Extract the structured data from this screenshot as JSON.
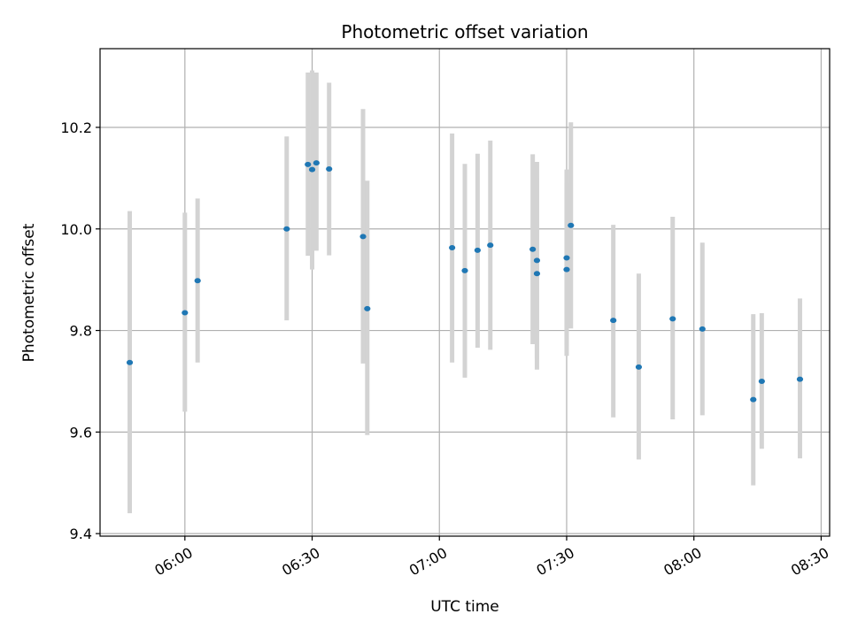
{
  "chart_data": {
    "type": "scatter",
    "title": "Photometric offset variation",
    "xlabel": "UTC time",
    "ylabel": "Photometric offset",
    "x_tick_labels": [
      "06:00",
      "06:30",
      "07:00",
      "07:30",
      "08:00",
      "08:30"
    ],
    "x_tick_values": [
      "06:00",
      "06:30",
      "07:00",
      "07:30",
      "08:00",
      "08:30"
    ],
    "y_ticks": [
      9.4,
      9.6,
      9.8,
      10.0,
      10.2
    ],
    "y_tick_labels": [
      "9.4",
      "9.6",
      "9.8",
      "10.0",
      "10.2"
    ],
    "xlim": [
      "05:40",
      "08:32"
    ],
    "ylim": [
      9.395,
      10.355
    ],
    "grid": true,
    "colors": {
      "point": "#1f77b4",
      "errorbar": "#d3d3d3",
      "grid": "#b0b0b0"
    },
    "points": [
      {
        "time": "05:47",
        "y": 9.737,
        "ylo": 9.44,
        "yhi": 10.035
      },
      {
        "time": "06:00",
        "y": 9.835,
        "ylo": 9.64,
        "yhi": 10.032
      },
      {
        "time": "06:03",
        "y": 9.898,
        "ylo": 9.737,
        "yhi": 10.06
      },
      {
        "time": "06:24",
        "y": 10.0,
        "ylo": 9.82,
        "yhi": 10.182
      },
      {
        "time": "06:29",
        "y": 10.127,
        "ylo": 9.947,
        "yhi": 10.308
      },
      {
        "time": "06:30",
        "y": 10.117,
        "ylo": 9.92,
        "yhi": 10.312
      },
      {
        "time": "06:31",
        "y": 10.13,
        "ylo": 9.957,
        "yhi": 10.308
      },
      {
        "time": "06:34",
        "y": 10.118,
        "ylo": 9.948,
        "yhi": 10.288
      },
      {
        "time": "06:42",
        "y": 9.985,
        "ylo": 9.735,
        "yhi": 10.236
      },
      {
        "time": "06:43",
        "y": 9.843,
        "ylo": 9.594,
        "yhi": 10.095
      },
      {
        "time": "07:03",
        "y": 9.963,
        "ylo": 9.737,
        "yhi": 10.188
      },
      {
        "time": "07:06",
        "y": 9.918,
        "ylo": 9.707,
        "yhi": 10.128
      },
      {
        "time": "07:09",
        "y": 9.958,
        "ylo": 9.766,
        "yhi": 10.148
      },
      {
        "time": "07:12",
        "y": 9.968,
        "ylo": 9.762,
        "yhi": 10.174
      },
      {
        "time": "07:22",
        "y": 9.96,
        "ylo": 9.773,
        "yhi": 10.147
      },
      {
        "time": "07:23",
        "y": 9.938,
        "ylo": 9.745,
        "yhi": 10.132
      },
      {
        "time": "07:23",
        "y": 9.912,
        "ylo": 9.723,
        "yhi": 10.1
      },
      {
        "time": "07:30",
        "y": 9.943,
        "ylo": 9.77,
        "yhi": 10.117
      },
      {
        "time": "07:30",
        "y": 9.92,
        "ylo": 9.75,
        "yhi": 10.09
      },
      {
        "time": "07:31",
        "y": 10.007,
        "ylo": 9.804,
        "yhi": 10.21
      },
      {
        "time": "07:41",
        "y": 9.82,
        "ylo": 9.629,
        "yhi": 10.008
      },
      {
        "time": "07:47",
        "y": 9.728,
        "ylo": 9.546,
        "yhi": 9.912
      },
      {
        "time": "07:55",
        "y": 9.823,
        "ylo": 9.625,
        "yhi": 10.024
      },
      {
        "time": "08:02",
        "y": 9.803,
        "ylo": 9.633,
        "yhi": 9.973
      },
      {
        "time": "08:14",
        "y": 9.664,
        "ylo": 9.495,
        "yhi": 9.832
      },
      {
        "time": "08:16",
        "y": 9.7,
        "ylo": 9.567,
        "yhi": 9.834
      },
      {
        "time": "08:25",
        "y": 9.704,
        "ylo": 9.548,
        "yhi": 9.863
      }
    ]
  }
}
